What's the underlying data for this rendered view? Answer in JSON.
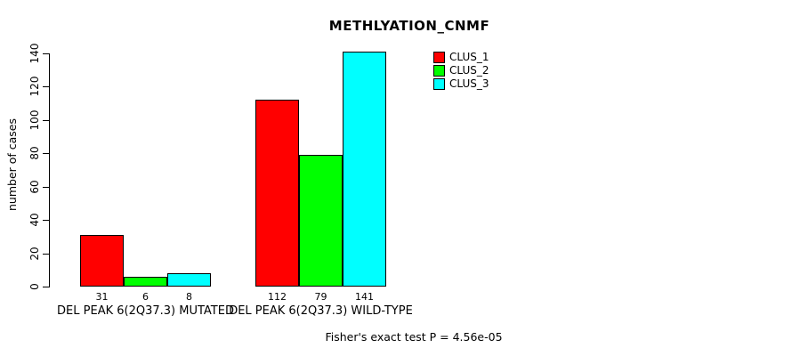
{
  "chart_data": {
    "type": "bar",
    "title": "METHLYATION_CNMF",
    "ylabel": "number of cases",
    "xlabel": "",
    "ylim": [
      0,
      140
    ],
    "yticks": [
      0,
      20,
      40,
      60,
      80,
      100,
      120,
      140
    ],
    "categories": [
      "DEL PEAK  6(2Q37.3) MUTATED",
      "DEL PEAK  6(2Q37.3) WILD-TYPE"
    ],
    "series": [
      {
        "name": "CLUS_1",
        "color": "#FF0000",
        "values": [
          31,
          112
        ]
      },
      {
        "name": "CLUS_2",
        "color": "#00FF00",
        "values": [
          6,
          79
        ]
      },
      {
        "name": "CLUS_3",
        "color": "#00FFFF",
        "values": [
          8,
          141
        ]
      }
    ],
    "bar_value_labels": [
      [
        31,
        6,
        8
      ],
      [
        112,
        79,
        141
      ]
    ],
    "annotation": "Fisher's exact test P = 4.56e-05",
    "legend_position": "top-right",
    "grid": false
  }
}
